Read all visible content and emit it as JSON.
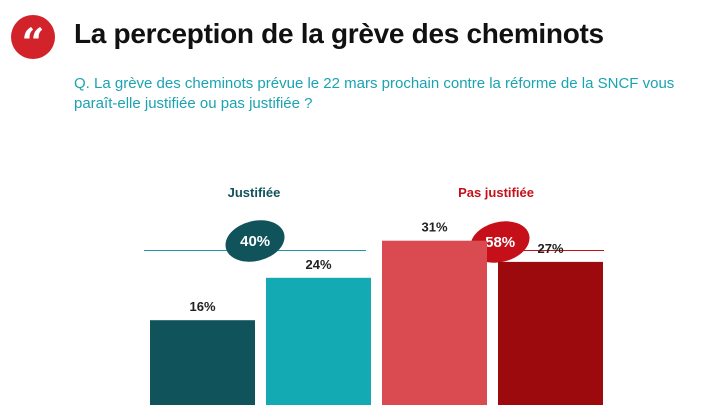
{
  "header": {
    "quote_icon": "quote-marks-icon",
    "quote_glyph": "“",
    "title": "La perception de la grève des cheminots"
  },
  "question": "Q. La grève des cheminots prévue le 22 mars prochain contre la réforme de la SNCF vous paraît-elle justifiée ou pas justifiée ?",
  "groups": [
    {
      "label": "Justifiée",
      "total": "40%",
      "color": "#10535b"
    },
    {
      "label": "Pas justifiée",
      "total": "58%",
      "color": "#c5101a"
    }
  ],
  "colors": {
    "accent": "#d2232a",
    "question": "#1aa3b0",
    "line_left": "#1a9aa6",
    "line_right": "#c5101a"
  },
  "chart_data": {
    "type": "bar",
    "values": [
      16,
      24,
      31,
      27
    ],
    "labels": [
      "16%",
      "24%",
      "31%",
      "27%"
    ],
    "colors": [
      "#10535b",
      "#14aab4",
      "#d94b51",
      "#9c0a0e"
    ]
  }
}
